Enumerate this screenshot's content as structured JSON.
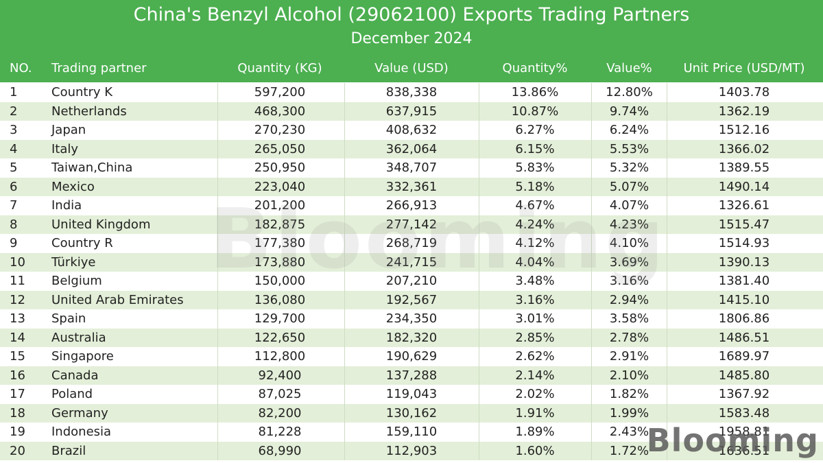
{
  "header": {
    "title": "China's Benzyl Alcohol (29062100) Exports Trading Partners",
    "subtitle": "December 2024"
  },
  "columns": {
    "no": "NO.",
    "partner": "Trading partner",
    "quantity": "Quantity (KG)",
    "value": "Value (USD)",
    "quantity_pct": "Quantity%",
    "value_pct": "Value%",
    "unit_price": "Unit Price (USD/MT)"
  },
  "rows": [
    {
      "no": "1",
      "partner": "Country K",
      "quantity": "597,200",
      "value": "838,338",
      "quantity_pct": "13.86%",
      "value_pct": "12.80%",
      "unit_price": "1403.78"
    },
    {
      "no": "2",
      "partner": "Netherlands",
      "quantity": "468,300",
      "value": "637,915",
      "quantity_pct": "10.87%",
      "value_pct": "9.74%",
      "unit_price": "1362.19"
    },
    {
      "no": "3",
      "partner": "Japan",
      "quantity": "270,230",
      "value": "408,632",
      "quantity_pct": "6.27%",
      "value_pct": "6.24%",
      "unit_price": "1512.16"
    },
    {
      "no": "4",
      "partner": "Italy",
      "quantity": "265,050",
      "value": "362,064",
      "quantity_pct": "6.15%",
      "value_pct": "5.53%",
      "unit_price": "1366.02"
    },
    {
      "no": "5",
      "partner": "Taiwan,China",
      "quantity": "250,950",
      "value": "348,707",
      "quantity_pct": "5.83%",
      "value_pct": "5.32%",
      "unit_price": "1389.55"
    },
    {
      "no": "6",
      "partner": "Mexico",
      "quantity": "223,040",
      "value": "332,361",
      "quantity_pct": "5.18%",
      "value_pct": "5.07%",
      "unit_price": "1490.14"
    },
    {
      "no": "7",
      "partner": "India",
      "quantity": "201,200",
      "value": "266,913",
      "quantity_pct": "4.67%",
      "value_pct": "4.07%",
      "unit_price": "1326.61"
    },
    {
      "no": "8",
      "partner": "United Kingdom",
      "quantity": "182,875",
      "value": "277,142",
      "quantity_pct": "4.24%",
      "value_pct": "4.23%",
      "unit_price": "1515.47"
    },
    {
      "no": "9",
      "partner": "Country R",
      "quantity": "177,380",
      "value": "268,719",
      "quantity_pct": "4.12%",
      "value_pct": "4.10%",
      "unit_price": "1514.93"
    },
    {
      "no": "10",
      "partner": "Türkiye",
      "quantity": "173,880",
      "value": "241,715",
      "quantity_pct": "4.04%",
      "value_pct": "3.69%",
      "unit_price": "1390.13"
    },
    {
      "no": "11",
      "partner": "Belgium",
      "quantity": "150,000",
      "value": "207,210",
      "quantity_pct": "3.48%",
      "value_pct": "3.16%",
      "unit_price": "1381.40"
    },
    {
      "no": "12",
      "partner": "United Arab Emirates",
      "quantity": "136,080",
      "value": "192,567",
      "quantity_pct": "3.16%",
      "value_pct": "2.94%",
      "unit_price": "1415.10"
    },
    {
      "no": "13",
      "partner": "Spain",
      "quantity": "129,700",
      "value": "234,350",
      "quantity_pct": "3.01%",
      "value_pct": "3.58%",
      "unit_price": "1806.86"
    },
    {
      "no": "14",
      "partner": "Australia",
      "quantity": "122,650",
      "value": "182,320",
      "quantity_pct": "2.85%",
      "value_pct": "2.78%",
      "unit_price": "1486.51"
    },
    {
      "no": "15",
      "partner": "Singapore",
      "quantity": "112,800",
      "value": "190,629",
      "quantity_pct": "2.62%",
      "value_pct": "2.91%",
      "unit_price": "1689.97"
    },
    {
      "no": "16",
      "partner": "Canada",
      "quantity": "92,400",
      "value": "137,288",
      "quantity_pct": "2.14%",
      "value_pct": "2.10%",
      "unit_price": "1485.80"
    },
    {
      "no": "17",
      "partner": "Poland",
      "quantity": "87,025",
      "value": "119,043",
      "quantity_pct": "2.02%",
      "value_pct": "1.82%",
      "unit_price": "1367.92"
    },
    {
      "no": "18",
      "partner": "Germany",
      "quantity": "82,200",
      "value": "130,162",
      "quantity_pct": "1.91%",
      "value_pct": "1.99%",
      "unit_price": "1583.48"
    },
    {
      "no": "19",
      "partner": "Indonesia",
      "quantity": "81,228",
      "value": "159,110",
      "quantity_pct": "1.89%",
      "value_pct": "2.43%",
      "unit_price": "1958.81"
    },
    {
      "no": "20",
      "partner": "Brazil",
      "quantity": "68,990",
      "value": "112,903",
      "quantity_pct": "1.60%",
      "value_pct": "1.72%",
      "unit_price": "1636.51"
    }
  ],
  "watermark": "Blooming",
  "logo": "Blooming"
}
